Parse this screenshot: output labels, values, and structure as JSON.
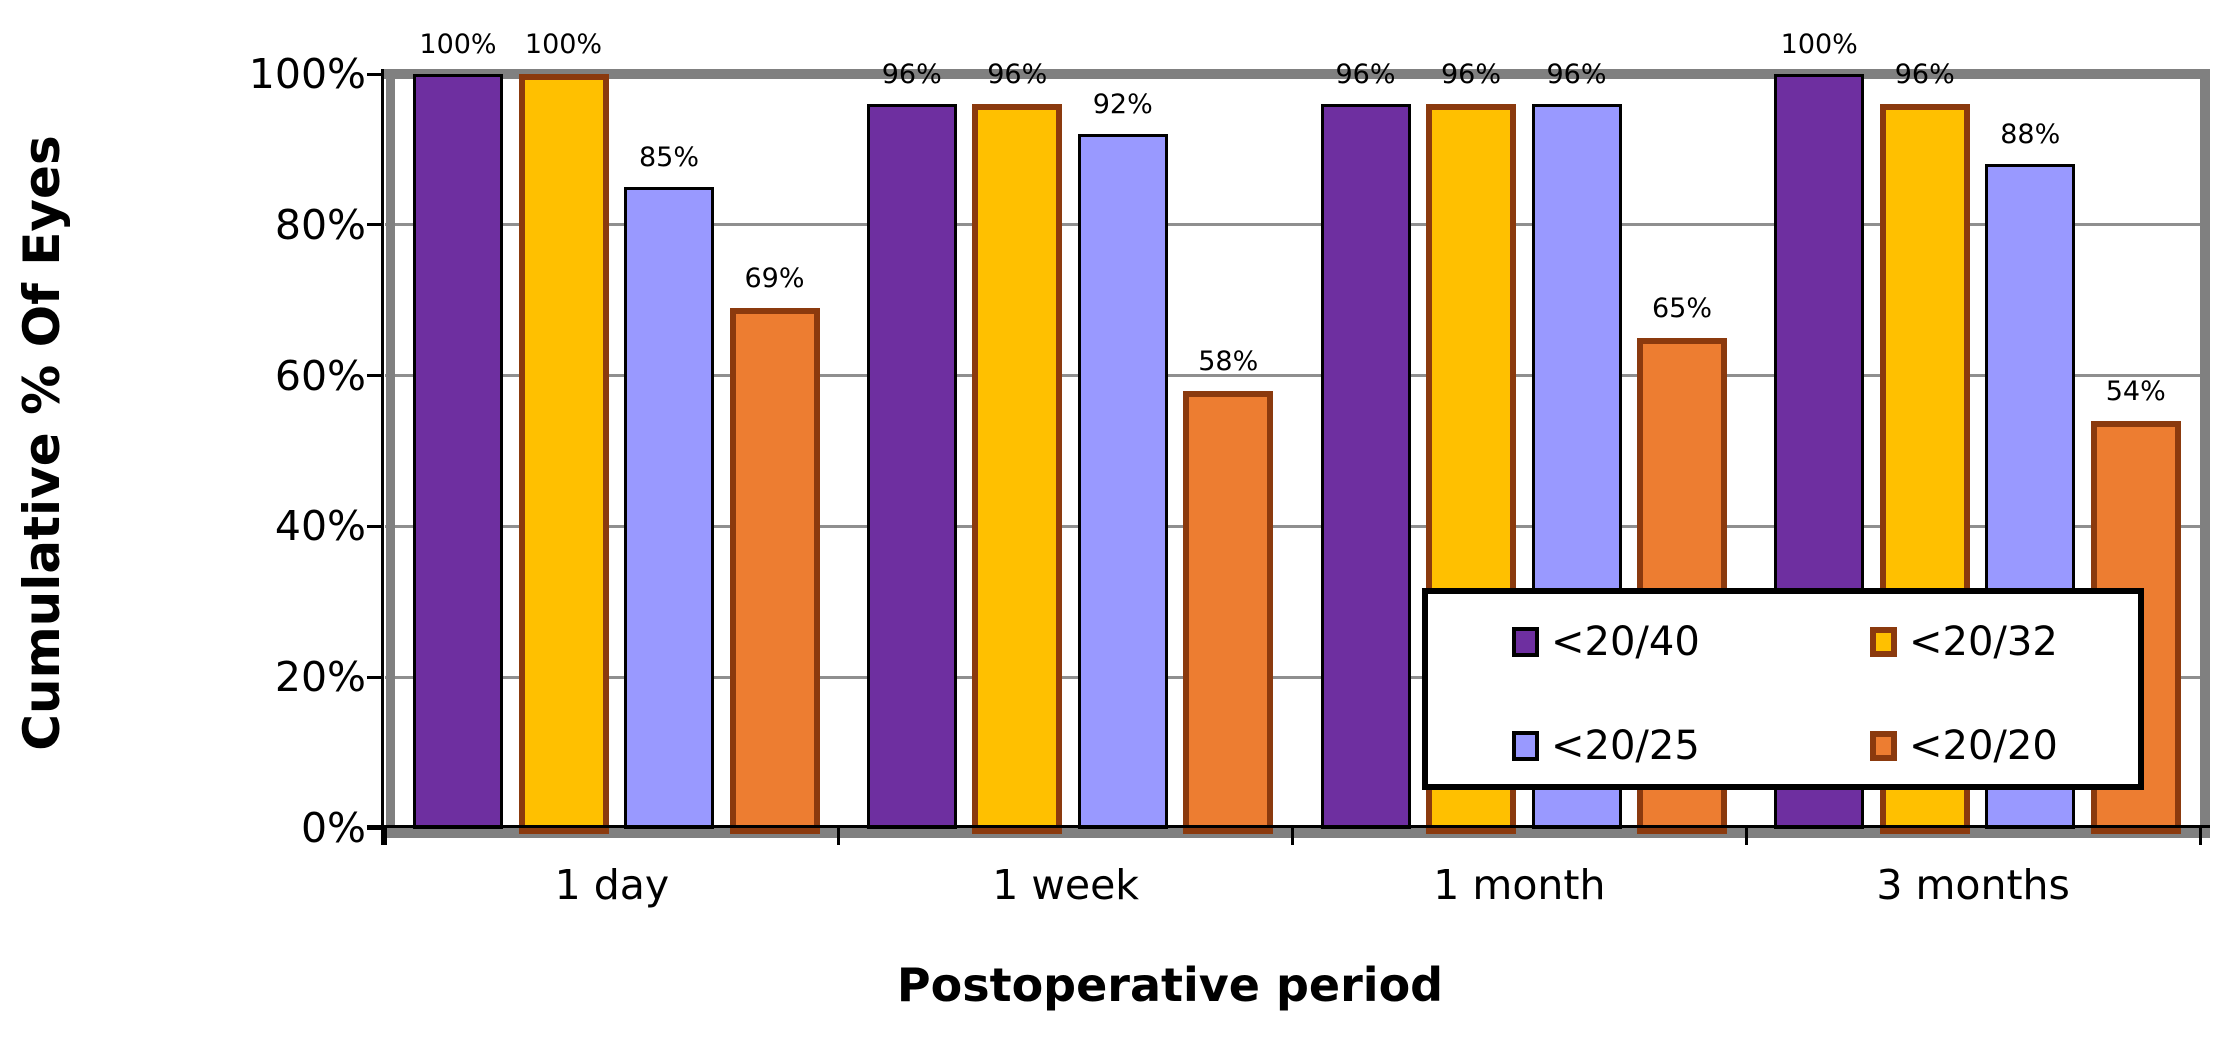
{
  "chart_data": {
    "type": "bar",
    "title": "",
    "xlabel": "Postoperative period",
    "ylabel": "Cumulative % Of Eyes",
    "categories": [
      "1 day",
      "1 week",
      "1 month",
      "3 months"
    ],
    "series": [
      {
        "name": "<20/40",
        "values": [
          100,
          96,
          96,
          100
        ],
        "labels": [
          "100%",
          "96%",
          "96%",
          "100%"
        ],
        "fill": "#6E2FA0",
        "border": "#000000",
        "border_px": 3
      },
      {
        "name": "<20/32",
        "values": [
          100,
          96,
          96,
          96
        ],
        "labels": [
          "100%",
          "96%",
          "96%",
          "96%"
        ],
        "fill": "#FFC000",
        "border": "#8B3A0E",
        "border_px": 6
      },
      {
        "name": "<20/25",
        "values": [
          85,
          92,
          96,
          88
        ],
        "labels": [
          "85%",
          "92%",
          "96%",
          "88%"
        ],
        "fill": "#9999FF",
        "border": "#000000",
        "border_px": 3
      },
      {
        "name": "<20/20",
        "values": [
          69,
          58,
          65,
          54
        ],
        "labels": [
          "69%",
          "58%",
          "65%",
          "54%"
        ],
        "fill": "#ED7D31",
        "border": "#8B3A0E",
        "border_px": 6
      }
    ],
    "y_ticks": [
      "0%",
      "20%",
      "40%",
      "60%",
      "80%",
      "100%"
    ],
    "ylim": [
      0,
      100
    ],
    "grid": true,
    "gridline_color": "#8f8f8f",
    "frame_color": "#808080",
    "legend_position": "inside-bottom-right",
    "legend_items": [
      "<20/40",
      "<20/32",
      "<20/25",
      "<20/20"
    ]
  }
}
